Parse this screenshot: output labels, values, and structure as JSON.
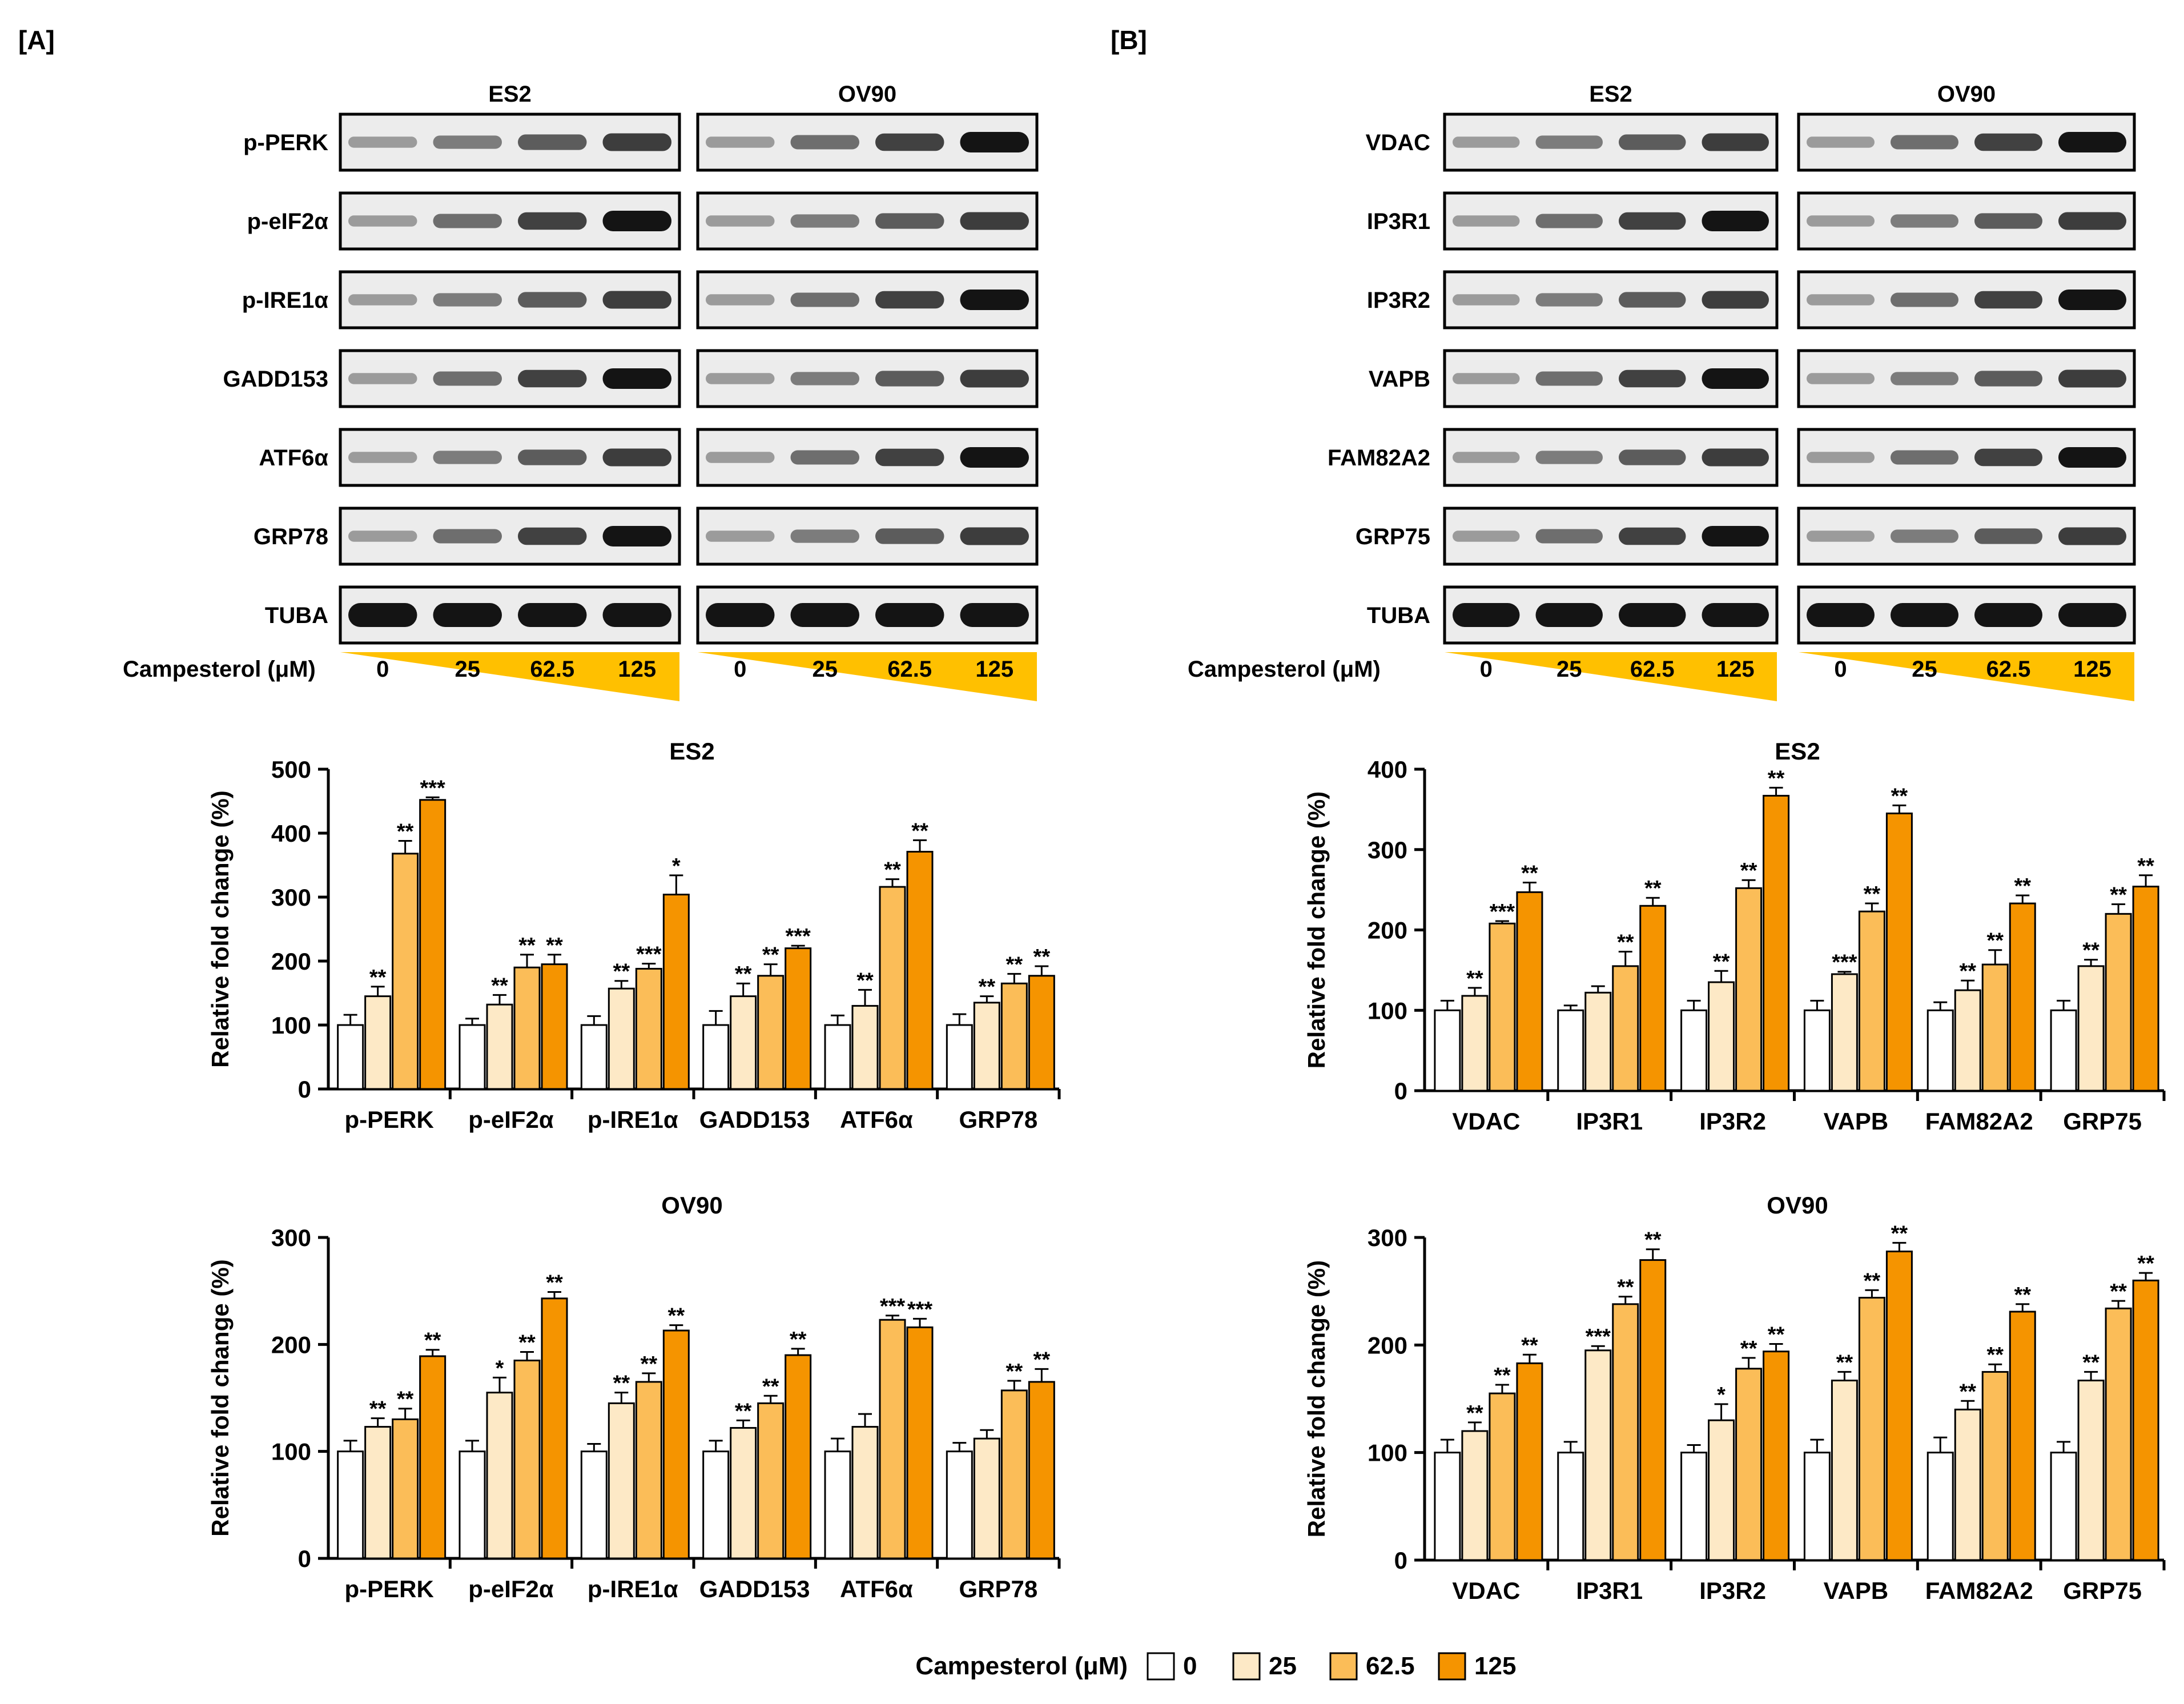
{
  "panel_labels": {
    "a": "[A]",
    "b": "[B]"
  },
  "treatment_label": "Campesterol (μM)",
  "doses": [
    "0",
    "25",
    "62.5",
    "125"
  ],
  "series_colors": [
    "#ffffff",
    "#fde9c6",
    "#fbbd58",
    "#f59400"
  ],
  "wedge_color": "#ffc000",
  "cell_lines": [
    "ES2",
    "OV90"
  ],
  "blot_rows_a": [
    "p-PERK",
    "p-eIF2α",
    "p-IRE1α",
    "GADD153",
    "ATF6α",
    "GRP78",
    "TUBA"
  ],
  "blot_rows_b": [
    "VDAC",
    "IP3R1",
    "IP3R2",
    "VAPB",
    "FAM82A2",
    "GRP75",
    "TUBA"
  ],
  "legend": {
    "title": "Campesterol (μM)",
    "items": [
      "0",
      "25",
      "62.5",
      "125"
    ]
  },
  "chart_data": [
    {
      "id": "A-ES2",
      "type": "bar",
      "title": "ES2",
      "ylabel": "Relative fold change (%)",
      "ylim": [
        0,
        500
      ],
      "yticks": [
        0,
        100,
        200,
        300,
        400,
        500
      ],
      "categories": [
        "p-PERK",
        "p-eIF2α",
        "p-IRE1α",
        "GADD153",
        "ATF6α",
        "GRP78"
      ],
      "series": [
        {
          "name": "0",
          "values": [
            100,
            100,
            100,
            100,
            100,
            100
          ],
          "errors": [
            16,
            10,
            14,
            22,
            15,
            17
          ],
          "sig": [
            "",
            "",
            "",
            "",
            "",
            ""
          ]
        },
        {
          "name": "25",
          "values": [
            145,
            132,
            157,
            145,
            130,
            135
          ],
          "errors": [
            15,
            15,
            12,
            20,
            25,
            10
          ],
          "sig": [
            "**",
            "**",
            "**",
            "**",
            "**",
            "**"
          ]
        },
        {
          "name": "62.5",
          "values": [
            368,
            190,
            188,
            177,
            316,
            165
          ],
          "errors": [
            20,
            20,
            8,
            18,
            12,
            15
          ],
          "sig": [
            "**",
            "**",
            "***",
            "**",
            "**",
            "**"
          ]
        },
        {
          "name": "125",
          "values": [
            452,
            195,
            304,
            220,
            371,
            177
          ],
          "errors": [
            4,
            15,
            30,
            4,
            18,
            15
          ],
          "sig": [
            "***",
            "**",
            "*",
            "***",
            "**",
            "**"
          ]
        }
      ]
    },
    {
      "id": "A-OV90",
      "type": "bar",
      "title": "OV90",
      "ylabel": "Relative fold change (%)",
      "ylim": [
        0,
        300
      ],
      "yticks": [
        0,
        100,
        200,
        300
      ],
      "categories": [
        "p-PERK",
        "p-eIF2α",
        "p-IRE1α",
        "GADD153",
        "ATF6α",
        "GRP78"
      ],
      "series": [
        {
          "name": "0",
          "values": [
            100,
            100,
            100,
            100,
            100,
            100
          ],
          "errors": [
            10,
            10,
            7,
            10,
            12,
            8
          ],
          "sig": [
            "",
            "",
            "",
            "",
            "",
            ""
          ]
        },
        {
          "name": "25",
          "values": [
            123,
            155,
            145,
            122,
            123,
            112
          ],
          "errors": [
            8,
            14,
            10,
            7,
            12,
            8
          ],
          "sig": [
            "**",
            "*",
            "**",
            "**",
            "",
            ""
          ]
        },
        {
          "name": "62.5",
          "values": [
            130,
            185,
            165,
            145,
            223,
            157
          ],
          "errors": [
            10,
            8,
            8,
            7,
            4,
            9
          ],
          "sig": [
            "**",
            "**",
            "**",
            "**",
            "***",
            "**"
          ]
        },
        {
          "name": "125",
          "values": [
            189,
            243,
            213,
            190,
            216,
            165
          ],
          "errors": [
            6,
            6,
            5,
            6,
            8,
            12
          ],
          "sig": [
            "**",
            "**",
            "**",
            "**",
            "***",
            "**"
          ]
        }
      ]
    },
    {
      "id": "B-ES2",
      "type": "bar",
      "title": "ES2",
      "ylabel": "Relative fold change (%)",
      "ylim": [
        0,
        400
      ],
      "yticks": [
        0,
        100,
        200,
        300,
        400
      ],
      "categories": [
        "VDAC",
        "IP3R1",
        "IP3R2",
        "VAPB",
        "FAM82A2",
        "GRP75"
      ],
      "series": [
        {
          "name": "0",
          "values": [
            100,
            100,
            100,
            100,
            100,
            100
          ],
          "errors": [
            12,
            6,
            12,
            12,
            10,
            12
          ],
          "sig": [
            "",
            "",
            "",
            "",
            "",
            ""
          ]
        },
        {
          "name": "25",
          "values": [
            118,
            122,
            135,
            145,
            125,
            155
          ],
          "errors": [
            10,
            8,
            14,
            3,
            12,
            8
          ],
          "sig": [
            "**",
            "",
            "**",
            "***",
            "**",
            "**"
          ]
        },
        {
          "name": "62.5",
          "values": [
            208,
            155,
            252,
            223,
            157,
            220
          ],
          "errors": [
            3,
            18,
            10,
            10,
            18,
            12
          ],
          "sig": [
            "***",
            "**",
            "**",
            "**",
            "**",
            "**"
          ]
        },
        {
          "name": "125",
          "values": [
            247,
            230,
            367,
            345,
            233,
            254
          ],
          "errors": [
            12,
            10,
            10,
            10,
            10,
            14
          ],
          "sig": [
            "**",
            "**",
            "**",
            "**",
            "**",
            "**"
          ]
        }
      ]
    },
    {
      "id": "B-OV90",
      "type": "bar",
      "title": "OV90",
      "ylabel": "Relative fold change (%)",
      "ylim": [
        0,
        300
      ],
      "yticks": [
        0,
        100,
        200,
        300
      ],
      "categories": [
        "VDAC",
        "IP3R1",
        "IP3R2",
        "VAPB",
        "FAM82A2",
        "GRP75"
      ],
      "series": [
        {
          "name": "0",
          "values": [
            100,
            100,
            100,
            100,
            100,
            100
          ],
          "errors": [
            12,
            10,
            7,
            12,
            14,
            10
          ],
          "sig": [
            "",
            "",
            "",
            "",
            "",
            ""
          ]
        },
        {
          "name": "25",
          "values": [
            120,
            195,
            130,
            167,
            140,
            167
          ],
          "errors": [
            8,
            4,
            15,
            8,
            8,
            8
          ],
          "sig": [
            "**",
            "***",
            "*",
            "**",
            "**",
            "**"
          ]
        },
        {
          "name": "62.5",
          "values": [
            155,
            238,
            178,
            244,
            175,
            234
          ],
          "errors": [
            8,
            7,
            10,
            7,
            7,
            7
          ],
          "sig": [
            "**",
            "**",
            "**",
            "**",
            "**",
            "**"
          ]
        },
        {
          "name": "125",
          "values": [
            183,
            279,
            194,
            287,
            231,
            260
          ],
          "errors": [
            8,
            10,
            7,
            8,
            7,
            7
          ],
          "sig": [
            "**",
            "**",
            "**",
            "**",
            "**",
            "**"
          ]
        }
      ]
    }
  ]
}
